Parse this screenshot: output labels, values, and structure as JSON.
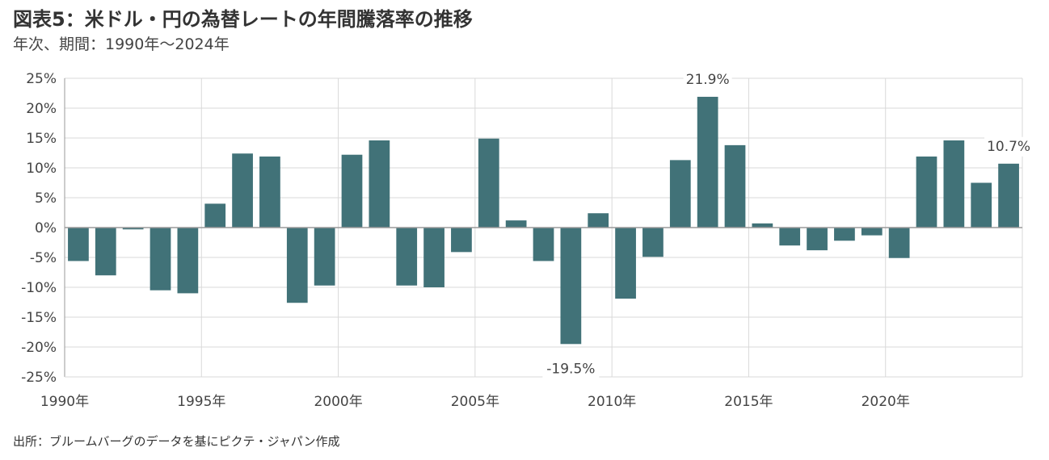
{
  "header": {
    "title": "図表5：米ドル・円の為替レートの年間騰落率の推移",
    "subtitle": "年次、期間：1990年～2024年"
  },
  "footer": {
    "source": "出所：ブルームバーグのデータを基にピクテ・ジャパン作成"
  },
  "colors": {
    "bar": "#417278",
    "grid": "#d9d9d9",
    "axis": "#9a9a9a"
  },
  "chart_data": {
    "type": "bar",
    "categories": [
      1990,
      1991,
      1992,
      1993,
      1994,
      1995,
      1996,
      1997,
      1998,
      1999,
      2000,
      2001,
      2002,
      2003,
      2004,
      2005,
      2006,
      2007,
      2008,
      2009,
      2010,
      2011,
      2012,
      2013,
      2014,
      2015,
      2016,
      2017,
      2018,
      2019,
      2020,
      2021,
      2022,
      2023,
      2024
    ],
    "values": [
      -5.6,
      -8.0,
      -0.3,
      -10.5,
      -11.0,
      4.0,
      12.4,
      11.9,
      -12.6,
      -9.7,
      12.2,
      14.6,
      -9.7,
      -10.0,
      -4.1,
      14.9,
      1.2,
      -5.6,
      -19.5,
      2.4,
      -11.9,
      -4.9,
      11.3,
      21.9,
      13.8,
      0.7,
      -3.0,
      -3.8,
      -2.2,
      -1.3,
      -5.1,
      11.9,
      14.6,
      7.5,
      10.7
    ],
    "x_tick_labels": [
      {
        "year": 1990,
        "label": "1990年"
      },
      {
        "year": 1995,
        "label": "1995年"
      },
      {
        "year": 2000,
        "label": "2000年"
      },
      {
        "year": 2005,
        "label": "2005年"
      },
      {
        "year": 2010,
        "label": "2010年"
      },
      {
        "year": 2015,
        "label": "2015年"
      },
      {
        "year": 2020,
        "label": "2020年"
      }
    ],
    "y_ticks": [
      {
        "value": 25,
        "label": "25%"
      },
      {
        "value": 20,
        "label": "20%"
      },
      {
        "value": 15,
        "label": "15%"
      },
      {
        "value": 10,
        "label": "10%"
      },
      {
        "value": 5,
        "label": "5%"
      },
      {
        "value": 0,
        "label": "0%"
      },
      {
        "value": -5,
        "label": "-5%"
      },
      {
        "value": -10,
        "label": "-10%"
      },
      {
        "value": -15,
        "label": "-15%"
      },
      {
        "value": -20,
        "label": "-20%"
      },
      {
        "value": -25,
        "label": "-25%"
      }
    ],
    "data_labels": [
      {
        "year": 2008,
        "label": "-19.5%"
      },
      {
        "year": 2013,
        "label": "21.9%"
      },
      {
        "year": 2024,
        "label": "10.7%"
      }
    ],
    "ylim": [
      -25,
      25
    ],
    "grid": true,
    "legend": "none"
  }
}
